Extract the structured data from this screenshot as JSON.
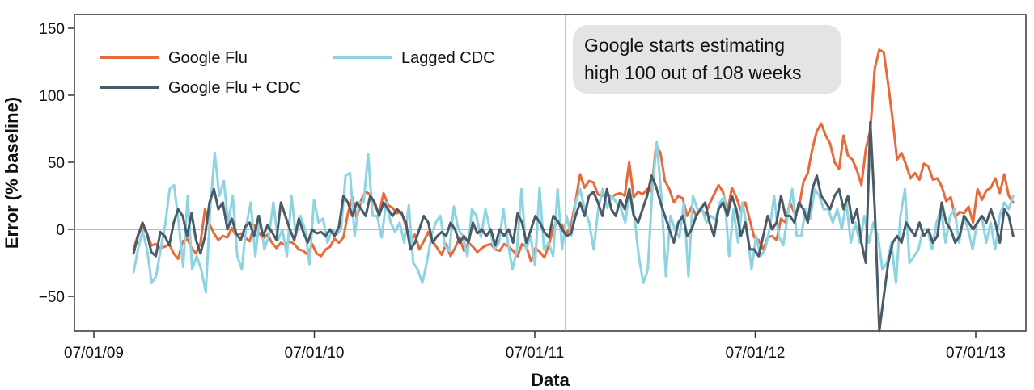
{
  "chart_data": {
    "type": "line",
    "title": "",
    "xlabel": "Data",
    "ylabel": "Error (% baseline)",
    "xlim": [
      -0.1,
      4.2
    ],
    "ylim": [
      -75,
      160
    ],
    "x_ticks": [
      {
        "value": 0,
        "label": "07/01/09"
      },
      {
        "value": 1,
        "label": "07/01/10"
      },
      {
        "value": 2,
        "label": "07/01/11"
      },
      {
        "value": 3,
        "label": "07/01/12"
      },
      {
        "value": 4,
        "label": "07/01/13"
      }
    ],
    "y_ticks": [
      {
        "value": 150,
        "label": "150"
      },
      {
        "value": 100,
        "label": "100"
      },
      {
        "value": 50,
        "label": "50"
      },
      {
        "value": 0,
        "label": "0"
      },
      {
        "value": -50,
        "label": "−50"
      }
    ],
    "x_unit": "years since 07/01/09",
    "zero_line": true,
    "grid": false,
    "legend_position": "top-left",
    "annotation": {
      "text_lines": [
        "Google starts estimating",
        "high 100 out of 108 weeks"
      ],
      "x": 2.14
    },
    "series": [
      {
        "name": "Google Flu",
        "color": "#e8693a",
        "x_start": 0.18,
        "x_end": 4.17,
        "values": [
          -15,
          -4,
          2,
          -3,
          -12,
          -11,
          -14,
          -13,
          -11,
          -18,
          -22,
          -9,
          -7,
          -14,
          -18,
          -10,
          15,
          4,
          -3,
          -8,
          -5,
          -6,
          1,
          -5,
          -3,
          -6,
          -9,
          3,
          -2,
          -7,
          -4,
          -10,
          -14,
          -10,
          -12,
          -9,
          -11,
          -15,
          -16,
          -19,
          -11,
          -18,
          -20,
          -15,
          -13,
          -7,
          -10,
          -6,
          12,
          24,
          8,
          22,
          28,
          26,
          18,
          12,
          27,
          18,
          16,
          12,
          13,
          2,
          -9,
          -4,
          -15,
          -9,
          -2,
          -9,
          -14,
          -19,
          -11,
          -20,
          -14,
          -6,
          -16,
          -10,
          -13,
          -17,
          -14,
          -12,
          -11,
          -15,
          -16,
          -11,
          -13,
          -16,
          -20,
          -11,
          -13,
          -24,
          -14,
          -17,
          -21,
          -12,
          1,
          6,
          3,
          -3,
          3,
          21,
          41,
          31,
          36,
          35,
          26,
          25,
          27,
          24,
          26,
          27,
          25,
          50,
          24,
          28,
          26,
          30,
          28,
          63,
          57,
          36,
          30,
          20,
          25,
          23,
          10,
          17,
          10,
          16,
          11,
          19,
          26,
          33,
          28,
          13,
          31,
          24,
          14,
          20,
          7,
          -6,
          -8,
          -15,
          -6,
          -5,
          -8,
          8,
          5,
          20,
          12,
          16,
          35,
          42,
          60,
          73,
          79,
          70,
          64,
          50,
          45,
          70,
          55,
          52,
          44,
          33,
          60,
          74,
          120,
          134,
          132,
          108,
          82,
          52,
          57,
          48,
          38,
          42,
          37,
          49,
          47,
          37,
          38,
          32,
          21,
          24,
          9,
          13,
          12,
          17,
          5,
          30,
          22,
          29,
          31,
          38,
          27,
          41,
          25,
          20
        ]
      },
      {
        "name": "Lagged CDC",
        "color": "#8dd3e2",
        "x_start": 0.18,
        "x_end": 4.17,
        "values": [
          -32,
          -15,
          -1,
          -15,
          -40,
          -35,
          -15,
          3,
          30,
          33,
          5,
          -28,
          25,
          -30,
          -20,
          -30,
          -47,
          15,
          57,
          25,
          36,
          5,
          25,
          -20,
          -30,
          3,
          20,
          -20,
          10,
          -15,
          -5,
          20,
          -8,
          0,
          -20,
          25,
          -5,
          10,
          0,
          -26,
          22,
          5,
          8,
          -10,
          0,
          -4,
          0,
          40,
          42,
          -5,
          20,
          20,
          56,
          10,
          10,
          -6,
          20,
          5,
          -2,
          5,
          -10,
          18,
          -25,
          -30,
          -40,
          -25,
          -5,
          5,
          10,
          -12,
          -16,
          17,
          0,
          -5,
          -20,
          15,
          10,
          -6,
          15,
          0,
          -15,
          -10,
          15,
          -10,
          -30,
          -15,
          30,
          -15,
          -5,
          -27,
          31,
          -15,
          -10,
          -20,
          30,
          -15,
          10,
          -5,
          20,
          30,
          15,
          5,
          -15,
          15,
          30,
          16,
          25,
          20,
          16,
          5,
          30,
          10,
          -20,
          -40,
          -30,
          30,
          65,
          25,
          -35,
          10,
          0,
          -6,
          20,
          -35,
          25,
          15,
          15,
          5,
          10,
          7,
          20,
          25,
          -20,
          15,
          -10,
          20,
          0,
          -30,
          -5,
          -20,
          -15,
          0,
          25,
          -5,
          -12,
          10,
          30,
          -5,
          -5,
          15,
          8,
          30,
          25,
          15,
          15,
          5,
          15,
          0,
          20,
          -10,
          5,
          -10,
          10,
          -10,
          5,
          -5,
          -30,
          -25,
          -10,
          -40,
          10,
          30,
          -25,
          -20,
          -15,
          0,
          0,
          -15,
          5,
          15,
          -10,
          10,
          15,
          -10,
          10,
          0,
          -15,
          5,
          10,
          -10,
          5,
          -15,
          10,
          20,
          15,
          25
        ]
      },
      {
        "name": "Google Flu + CDC",
        "color": "#4a5a66",
        "x_start": 0.18,
        "x_end": 4.17,
        "values": [
          -18,
          -5,
          5,
          -3,
          -17,
          -20,
          -2,
          -5,
          -12,
          5,
          15,
          10,
          -5,
          12,
          -8,
          -18,
          -5,
          20,
          30,
          15,
          20,
          0,
          8,
          -3,
          -8,
          2,
          5,
          -5,
          10,
          -5,
          3,
          -2,
          -8,
          20,
          10,
          0,
          -8,
          8,
          -2,
          -10,
          0,
          -3,
          -2,
          -5,
          0,
          -5,
          2,
          25,
          20,
          10,
          20,
          15,
          10,
          25,
          20,
          10,
          20,
          15,
          10,
          15,
          12,
          5,
          -15,
          -10,
          0,
          10,
          5,
          -10,
          -5,
          -2,
          -5,
          5,
          0,
          -10,
          -5,
          -10,
          5,
          -3,
          0,
          -5,
          0,
          -12,
          0,
          -5,
          0,
          -10,
          12,
          5,
          -10,
          0,
          10,
          5,
          -2,
          -6,
          10,
          6,
          0,
          -5,
          -3,
          10,
          20,
          10,
          25,
          28,
          20,
          10,
          30,
          15,
          10,
          22,
          15,
          30,
          10,
          5,
          15,
          25,
          40,
          32,
          20,
          10,
          0,
          -10,
          5,
          10,
          -5,
          0,
          10,
          15,
          20,
          5,
          -5,
          15,
          20,
          10,
          25,
          15,
          -5,
          5,
          -15,
          -15,
          -20,
          -5,
          10,
          0,
          5,
          25,
          10,
          10,
          5,
          20,
          15,
          5,
          30,
          40,
          25,
          20,
          15,
          25,
          30,
          15,
          25,
          5,
          15,
          -10,
          -25,
          80,
          15,
          -78,
          -50,
          -25,
          -10,
          -5,
          -10,
          5,
          0,
          -5,
          5,
          -5,
          0,
          -10,
          -5,
          20,
          5,
          0,
          -10,
          -5,
          10,
          5,
          0,
          5,
          10,
          5,
          15,
          5,
          -10,
          15,
          10,
          -5
        ]
      }
    ]
  }
}
